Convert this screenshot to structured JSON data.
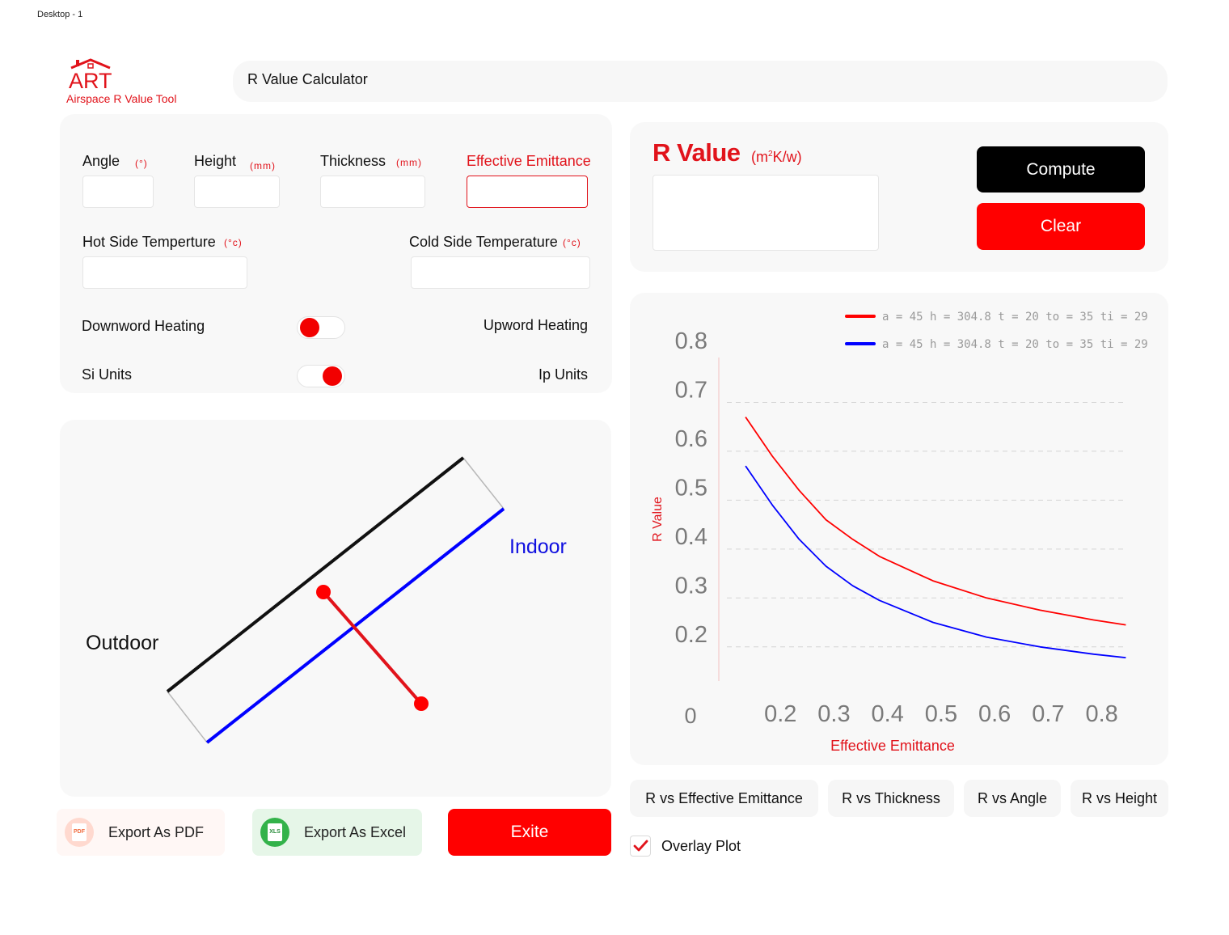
{
  "frame_label": "Desktop - 1",
  "logo": {
    "wordmark": "ART",
    "tagline": "Airspace R Value Tool"
  },
  "header": {
    "title": "R Value Calculator"
  },
  "inputs": {
    "angle": {
      "label": "Angle",
      "unit": "(°)",
      "value": ""
    },
    "height": {
      "label": "Height",
      "unit": "(mm)",
      "value": ""
    },
    "thickness": {
      "label": "Thickness",
      "unit": "(mm)",
      "value": ""
    },
    "emittance": {
      "label": "Effective Emittance",
      "value": ""
    },
    "hot_temp": {
      "label": "Hot Side Temperture",
      "unit": "(°c)",
      "value": ""
    },
    "cold_temp": {
      "label": "Cold Side Temperature",
      "unit": "(°c)",
      "value": ""
    }
  },
  "toggles": {
    "heating": {
      "left_label": "Downword Heating",
      "right_label": "Upword Heating",
      "state": "left"
    },
    "units": {
      "left_label": "Si Units",
      "right_label": "Ip Units",
      "state": "right"
    }
  },
  "diagram": {
    "outdoor_label": "Outdoor",
    "indoor_label": "Indoor"
  },
  "result": {
    "title": "R Value",
    "unit_prefix": "(m",
    "unit_sup": "2",
    "unit_suffix": "K/w)",
    "value": ""
  },
  "actions": {
    "compute": "Compute",
    "clear": "Clear",
    "export_pdf": "Export As PDF",
    "export_excel": "Export As Excel",
    "exit": "Exite",
    "pdf_icon_text": "PDF",
    "xls_icon_text": "XLS"
  },
  "colors": {
    "accent": "#e1131b",
    "series1": "#ff0000",
    "series2": "#0000ff"
  },
  "icons": {
    "pdf": "pdf-file-icon",
    "excel": "excel-file-icon",
    "logo": "house-icon",
    "check": "check-icon"
  },
  "tabs": [
    "R vs Effective Emittance",
    "R vs Thickness",
    "R vs Angle",
    "R vs Height"
  ],
  "overlay": {
    "label": "Overlay Plot",
    "checked": true
  },
  "chart_data": {
    "type": "line",
    "xlabel": "Effective Emittance",
    "ylabel": "R Value",
    "xlim": [
      0.1,
      0.87
    ],
    "ylim": [
      0.15,
      0.8
    ],
    "x_ticks": [
      "0.2",
      "0.3",
      "0.4",
      "0.5",
      "0.6",
      "0.7",
      "0.8"
    ],
    "x_tick_values": [
      0.2,
      0.3,
      0.4,
      0.5,
      0.6,
      0.7,
      0.8
    ],
    "origin_label": "0",
    "y_ticks": [
      "0.8",
      "0.7",
      "0.6",
      "0.5",
      "0.4",
      "0.3",
      "0.2"
    ],
    "y_tick_values": [
      0.8,
      0.7,
      0.6,
      0.5,
      0.4,
      0.3,
      0.2
    ],
    "grid": "horizontal-dashed",
    "legend_position": "top-right",
    "series": [
      {
        "name": "a = 45  h = 304.8  t = 20  to = 35  ti = 29",
        "color": "#ff0000",
        "x": [
          0.15,
          0.2,
          0.25,
          0.3,
          0.35,
          0.4,
          0.5,
          0.6,
          0.7,
          0.8,
          0.86
        ],
        "y": [
          0.67,
          0.59,
          0.52,
          0.46,
          0.42,
          0.385,
          0.335,
          0.3,
          0.275,
          0.255,
          0.245
        ]
      },
      {
        "name": "a = 45  h = 304.8  t = 20  to = 35  ti = 29",
        "color": "#0000ff",
        "x": [
          0.15,
          0.2,
          0.25,
          0.3,
          0.35,
          0.4,
          0.5,
          0.6,
          0.7,
          0.8,
          0.86
        ],
        "y": [
          0.57,
          0.49,
          0.42,
          0.365,
          0.325,
          0.295,
          0.25,
          0.22,
          0.2,
          0.185,
          0.178
        ]
      }
    ]
  }
}
